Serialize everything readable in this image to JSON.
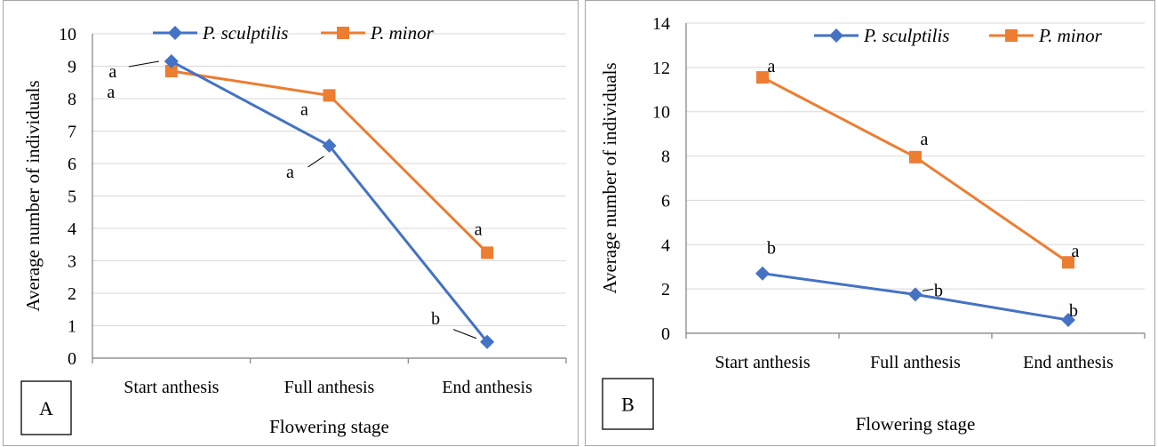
{
  "colors": {
    "series1": "#4472C4",
    "series2": "#ED7D31",
    "grid": "#d9d9d9",
    "axis": "#7f7f7f"
  },
  "chart_data": [
    {
      "type": "line",
      "panel_label": "A",
      "categories": [
        "Start anthesis",
        "Full anthesis",
        "End anthesis"
      ],
      "xlabel": "Flowering stage",
      "ylabel": "Average number of individuals",
      "ylim": [
        0,
        10
      ],
      "yticks": [
        "0",
        "1",
        "2",
        "3",
        "4",
        "5",
        "6",
        "7",
        "8",
        "9",
        "10"
      ],
      "grid": true,
      "legend_position": "top",
      "series": [
        {
          "name": "P. sculptilis",
          "marker": "diamond",
          "values": [
            9.15,
            6.55,
            0.5
          ],
          "letters": [
            "a",
            "a",
            "b"
          ]
        },
        {
          "name": "P. minor",
          "marker": "square",
          "values": [
            8.85,
            8.1,
            3.25
          ],
          "letters": [
            "a",
            "a",
            "a"
          ]
        }
      ]
    },
    {
      "type": "line",
      "panel_label": "B",
      "categories": [
        "Start anthesis",
        "Full anthesis",
        "End anthesis"
      ],
      "xlabel": "Flowering stage",
      "ylabel": "Average number of individuals",
      "ylim": [
        0,
        14
      ],
      "yticks": [
        "0",
        "2",
        "4",
        "6",
        "8",
        "10",
        "12",
        "14"
      ],
      "grid": true,
      "legend_position": "top-right",
      "series": [
        {
          "name": "P. sculptilis",
          "marker": "diamond",
          "values": [
            2.7,
            1.75,
            0.6
          ],
          "letters": [
            "b",
            "b",
            "b"
          ]
        },
        {
          "name": "P. minor",
          "marker": "square",
          "values": [
            11.55,
            7.95,
            3.2
          ],
          "letters": [
            "a",
            "a",
            "a"
          ]
        }
      ]
    }
  ]
}
